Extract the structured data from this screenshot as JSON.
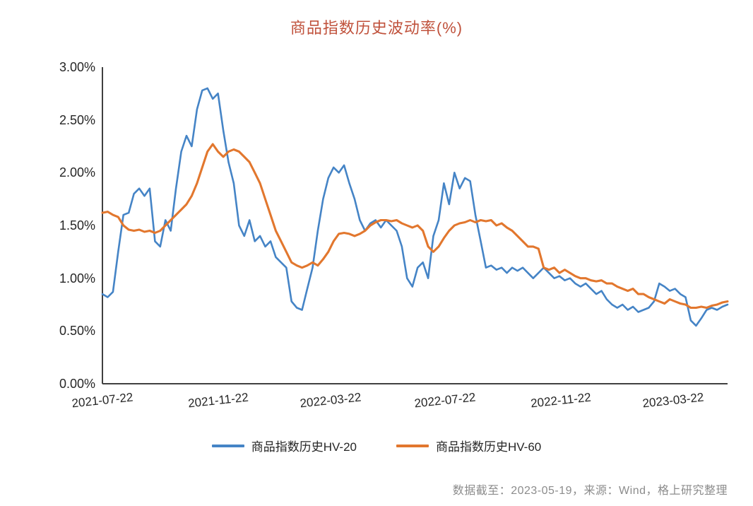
{
  "chart_data": {
    "type": "line",
    "title": "商品指数历史波动率(%)",
    "xlabel": "",
    "ylabel": "",
    "ylim": [
      0,
      3
    ],
    "grid": false,
    "legend_position": "bottom",
    "source_note": "数据截至：2023-05-19，来源：Wind，格上研究整理",
    "y_ticks": [
      {
        "label": "0.00%",
        "value": 0.0
      },
      {
        "label": "0.50%",
        "value": 0.5
      },
      {
        "label": "1.00%",
        "value": 1.0
      },
      {
        "label": "1.50%",
        "value": 1.5
      },
      {
        "label": "2.00%",
        "value": 2.0
      },
      {
        "label": "2.50%",
        "value": 2.5
      },
      {
        "label": "3.00%",
        "value": 3.0
      }
    ],
    "x_ticks": [
      {
        "label": "2021-07-22",
        "t": 0.0
      },
      {
        "label": "2021-11-22",
        "t": 0.185
      },
      {
        "label": "2022-03-22",
        "t": 0.365
      },
      {
        "label": "2022-07-22",
        "t": 0.548
      },
      {
        "label": "2022-11-22",
        "t": 0.733
      },
      {
        "label": "2023-03-22",
        "t": 0.913
      }
    ],
    "x_range_note": "daily values evenly spaced from 2021-07-22 to 2023-05-19",
    "series": [
      {
        "name": "商品指数历史HV-20",
        "color": "#4584c6",
        "values": [
          0.85,
          0.82,
          0.87,
          1.25,
          1.6,
          1.62,
          1.8,
          1.85,
          1.78,
          1.85,
          1.35,
          1.3,
          1.55,
          1.45,
          1.85,
          2.2,
          2.35,
          2.25,
          2.6,
          2.78,
          2.8,
          2.7,
          2.75,
          2.4,
          2.1,
          1.9,
          1.5,
          1.4,
          1.55,
          1.35,
          1.4,
          1.3,
          1.35,
          1.2,
          1.15,
          1.1,
          0.78,
          0.72,
          0.7,
          0.9,
          1.1,
          1.45,
          1.75,
          1.95,
          2.05,
          2.0,
          2.07,
          1.9,
          1.75,
          1.55,
          1.45,
          1.52,
          1.55,
          1.48,
          1.55,
          1.5,
          1.45,
          1.3,
          1.0,
          0.92,
          1.1,
          1.15,
          1.0,
          1.4,
          1.55,
          1.9,
          1.7,
          2.0,
          1.85,
          1.95,
          1.92,
          1.6,
          1.35,
          1.1,
          1.12,
          1.08,
          1.1,
          1.05,
          1.1,
          1.07,
          1.1,
          1.05,
          1.0,
          1.05,
          1.1,
          1.05,
          1.0,
          1.02,
          0.98,
          1.0,
          0.95,
          0.92,
          0.95,
          0.9,
          0.85,
          0.88,
          0.8,
          0.75,
          0.72,
          0.75,
          0.7,
          0.73,
          0.68,
          0.7,
          0.72,
          0.78,
          0.95,
          0.92,
          0.88,
          0.9,
          0.85,
          0.82,
          0.6,
          0.55,
          0.62,
          0.7,
          0.72,
          0.7,
          0.73,
          0.75
        ]
      },
      {
        "name": "商品指数历史HV-60",
        "color": "#e2772e",
        "values": [
          1.62,
          1.63,
          1.6,
          1.58,
          1.5,
          1.46,
          1.45,
          1.46,
          1.44,
          1.45,
          1.43,
          1.45,
          1.5,
          1.55,
          1.6,
          1.65,
          1.7,
          1.78,
          1.9,
          2.05,
          2.2,
          2.27,
          2.2,
          2.15,
          2.2,
          2.22,
          2.2,
          2.15,
          2.1,
          2.0,
          1.9,
          1.75,
          1.6,
          1.45,
          1.35,
          1.25,
          1.15,
          1.12,
          1.1,
          1.12,
          1.15,
          1.12,
          1.18,
          1.25,
          1.35,
          1.42,
          1.43,
          1.42,
          1.4,
          1.42,
          1.45,
          1.5,
          1.53,
          1.55,
          1.55,
          1.54,
          1.55,
          1.52,
          1.5,
          1.48,
          1.5,
          1.45,
          1.3,
          1.25,
          1.3,
          1.38,
          1.45,
          1.5,
          1.52,
          1.53,
          1.55,
          1.53,
          1.55,
          1.54,
          1.55,
          1.5,
          1.52,
          1.48,
          1.45,
          1.4,
          1.35,
          1.3,
          1.3,
          1.28,
          1.1,
          1.08,
          1.1,
          1.05,
          1.08,
          1.05,
          1.02,
          1.0,
          1.0,
          0.98,
          0.97,
          0.98,
          0.95,
          0.95,
          0.92,
          0.9,
          0.88,
          0.9,
          0.85,
          0.85,
          0.82,
          0.8,
          0.78,
          0.76,
          0.8,
          0.78,
          0.76,
          0.75,
          0.72,
          0.72,
          0.73,
          0.72,
          0.74,
          0.75,
          0.77,
          0.78
        ]
      }
    ]
  },
  "colors": {
    "title": "#c0523c",
    "axis": "#404040",
    "tick_text": "#262626",
    "source_text": "#8c8c8c"
  }
}
